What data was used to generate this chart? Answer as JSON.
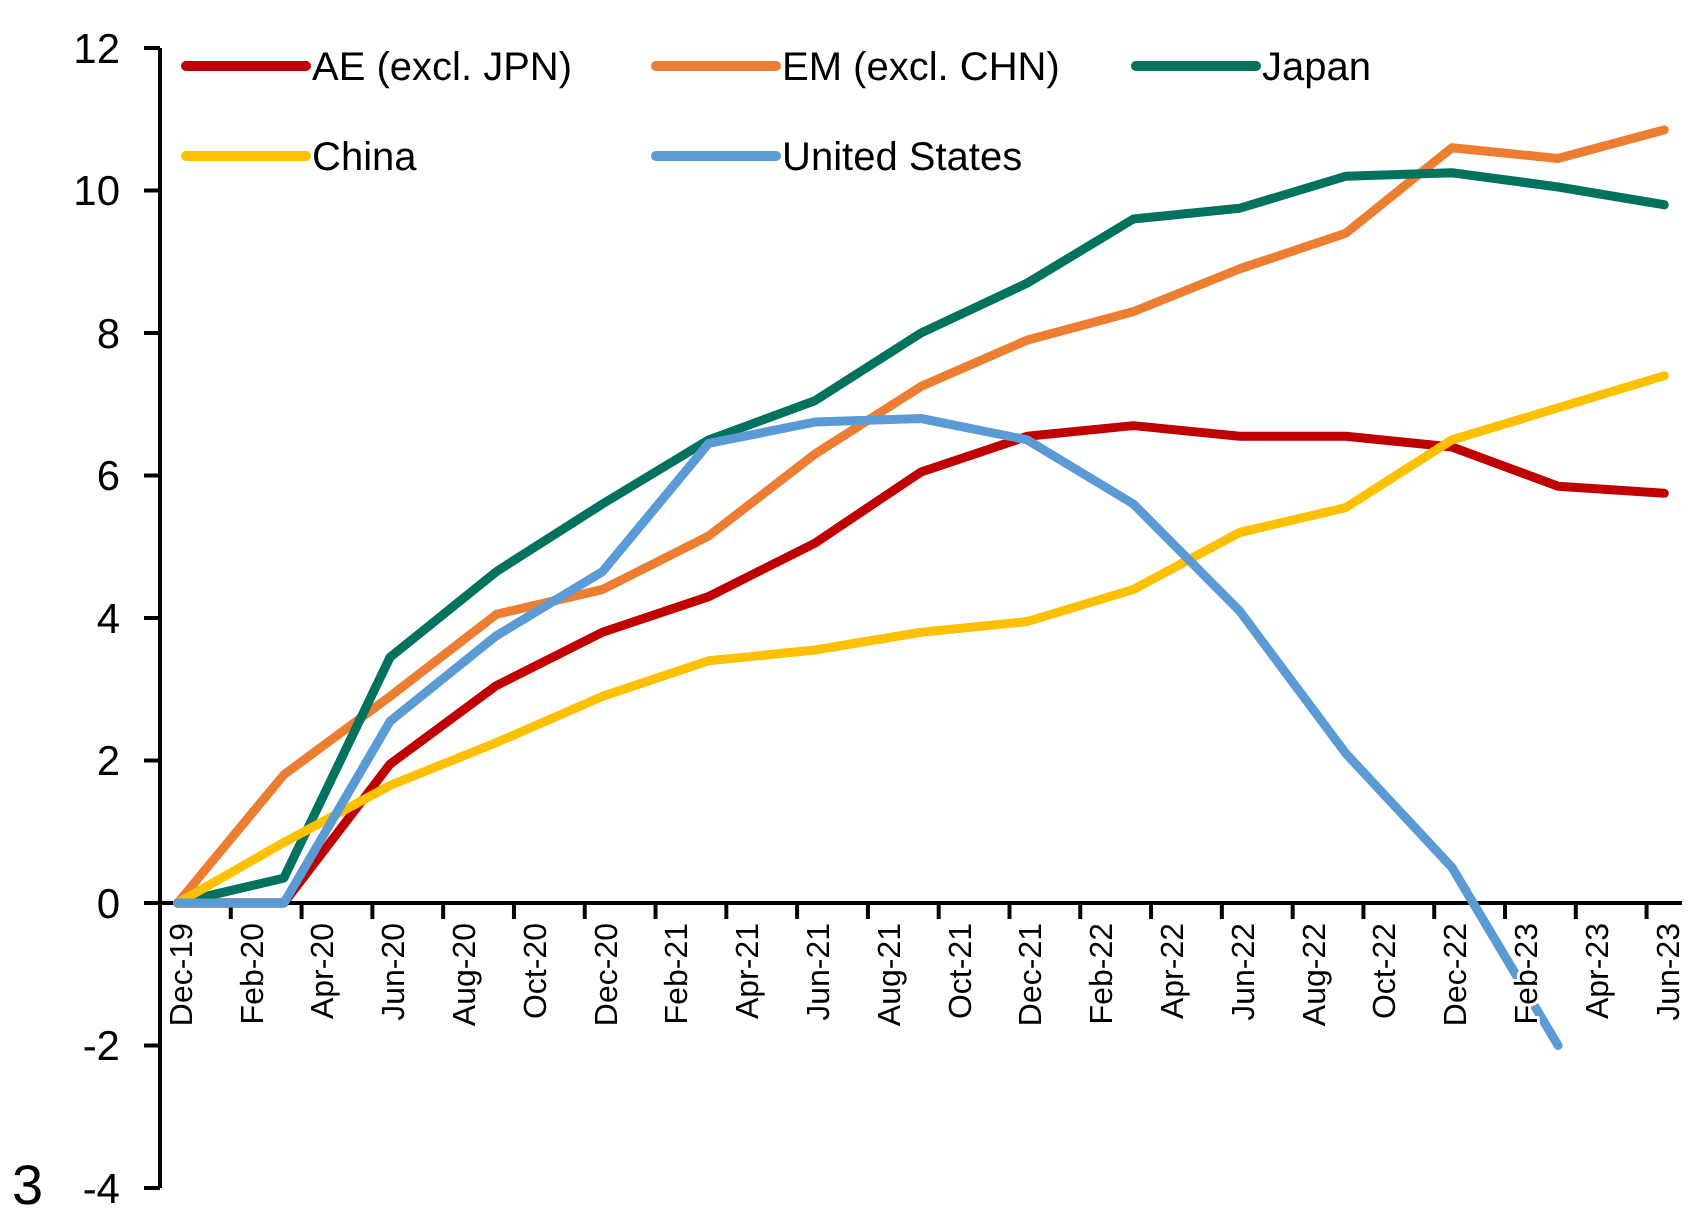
{
  "chart_data": {
    "type": "line",
    "categories": [
      "Dec-19",
      null,
      "Feb-20",
      null,
      "Apr-20",
      null,
      "Jun-20",
      null,
      "Aug-20",
      null,
      "Oct-20",
      null,
      "Dec-20",
      null,
      "Feb-21",
      null,
      "Apr-21",
      null,
      "Jun-21",
      null,
      "Aug-21",
      null,
      "Oct-21",
      null,
      "Dec-21",
      null,
      "Feb-22",
      null,
      "Apr-22",
      null,
      "Jun-22",
      null,
      "Aug-22",
      null,
      "Oct-22",
      null,
      "Dec-22",
      null,
      "Feb-23",
      null,
      "Apr-23",
      null,
      "Jun-23"
    ],
    "series": [
      {
        "name": "AE (excl. JPN)",
        "color": "#c00000",
        "values": [
          0,
          null,
          null,
          0,
          null,
          null,
          1.95,
          null,
          null,
          3.05,
          null,
          null,
          3.8,
          null,
          null,
          4.3,
          null,
          null,
          5.05,
          null,
          null,
          6.05,
          null,
          null,
          6.55,
          null,
          null,
          6.7,
          null,
          null,
          6.55,
          null,
          null,
          6.55,
          null,
          null,
          6.4,
          null,
          null,
          5.85,
          null,
          null,
          5.75
        ]
      },
      {
        "name": "EM (excl. CHN)",
        "color": "#ed7d31",
        "values": [
          0,
          null,
          null,
          1.8,
          null,
          null,
          2.9,
          null,
          null,
          4.05,
          null,
          null,
          4.4,
          null,
          null,
          5.15,
          null,
          null,
          6.3,
          null,
          null,
          7.25,
          null,
          null,
          7.9,
          null,
          null,
          8.3,
          null,
          null,
          8.9,
          null,
          null,
          9.4,
          null,
          null,
          10.6,
          null,
          null,
          10.45,
          null,
          null,
          10.85
        ]
      },
      {
        "name": "Japan",
        "color": "#00725e",
        "values": [
          0,
          null,
          null,
          0.35,
          null,
          null,
          3.45,
          null,
          null,
          4.65,
          null,
          null,
          5.6,
          null,
          null,
          6.5,
          null,
          null,
          7.05,
          null,
          null,
          8.0,
          null,
          null,
          8.7,
          null,
          null,
          9.6,
          null,
          null,
          9.75,
          null,
          null,
          10.2,
          null,
          null,
          10.25,
          null,
          null,
          10.05,
          null,
          null,
          9.8
        ]
      },
      {
        "name": "China",
        "color": "#ffc000",
        "values": [
          0,
          null,
          null,
          0.85,
          null,
          null,
          1.65,
          null,
          null,
          2.25,
          null,
          null,
          2.9,
          null,
          null,
          3.4,
          null,
          null,
          3.55,
          null,
          null,
          3.8,
          null,
          null,
          3.95,
          null,
          null,
          4.4,
          null,
          null,
          5.2,
          null,
          null,
          5.55,
          null,
          null,
          6.5,
          null,
          null,
          6.95,
          null,
          null,
          7.4
        ]
      },
      {
        "name": "United States",
        "color": "#5b9bd5",
        "values": [
          0,
          null,
          null,
          0,
          null,
          null,
          2.55,
          null,
          null,
          3.75,
          null,
          null,
          4.65,
          null,
          null,
          6.45,
          null,
          null,
          6.75,
          null,
          null,
          6.8,
          null,
          null,
          6.5,
          null,
          null,
          5.6,
          null,
          null,
          4.1,
          null,
          null,
          2.1,
          null,
          null,
          0.5,
          null,
          null,
          -2.0,
          null,
          null,
          null
        ]
      }
    ],
    "ylim": [
      -4,
      12
    ],
    "yticks": [
      -4,
      -2,
      0,
      2,
      4,
      6,
      8,
      10,
      12
    ],
    "grid": false,
    "legend": "top",
    "marker": "none",
    "line_style": "solid",
    "annotations": [
      "3"
    ]
  }
}
